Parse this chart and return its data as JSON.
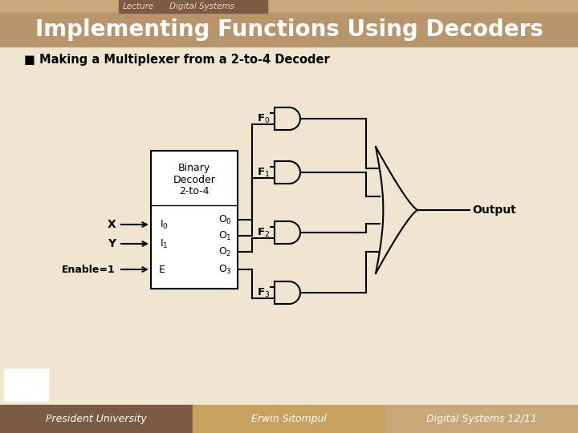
{
  "header_bg1": "#c8a878",
  "header_bg2": "#7a5c44",
  "title_bg": "#b8956a",
  "footer_bg1": "#7a5c44",
  "footer_bg2": "#c8a060",
  "footer_bg3": "#c8a878",
  "main_bg": "#f0e6d0",
  "header_text1": "Lecture",
  "header_text2": "Digital Systems",
  "main_title": "Implementing Functions Using Decoders",
  "subtitle": "■ Making a Multiplexer from a 2-to-4 Decoder",
  "footer_left": "President University",
  "footer_center": "Erwin Sitompul",
  "footer_right": "Digital Systems 12/11",
  "line_color": "#000000",
  "text_color": "#000000"
}
